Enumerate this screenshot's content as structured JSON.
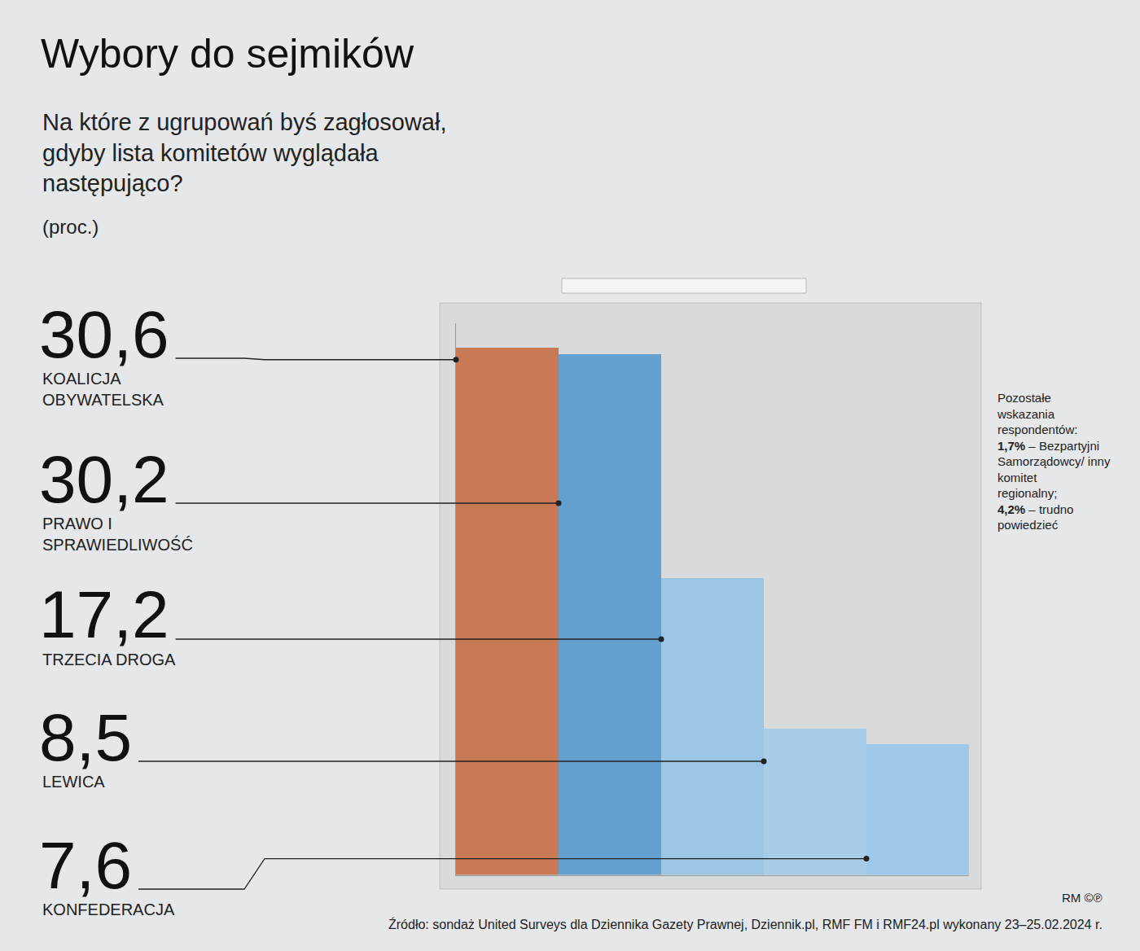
{
  "chart_data": {
    "type": "bar",
    "title": "Wybory do sejmików",
    "subtitle": "Na które z ugrupowań byś zagłosował, gdyby lista komitetów wyglądała następująco?",
    "unit": "(proc.)",
    "categories": [
      "KOALICJA OBYWATELSKA",
      "PRAWO I SPRAWIEDLIWOŚĆ",
      "TRZECIA DROGA",
      "LEWICA",
      "KONFEDERACJA"
    ],
    "values": [
      30.6,
      30.2,
      17.2,
      8.5,
      7.6
    ],
    "value_labels": [
      "30,6",
      "30,2",
      "17,2",
      "8,5",
      "7,6"
    ],
    "colors": [
      "#c97a55",
      "#64a0cf",
      "#9cc6e3",
      "#a7cde8",
      "#9ec9ea"
    ],
    "ylim": [
      0,
      32
    ],
    "tick_labels": false,
    "note": {
      "intro": "Pozostałe wskazania respondentów:",
      "items": [
        {
          "value": "1,7%",
          "text": "– Bezpartyjni Samorządowcy/ inny komitet regionalny;"
        },
        {
          "value": "4,2%",
          "text": "– trudno powiedzieć"
        }
      ]
    },
    "source": "Źródło: sondaż United Surveys dla Dziennika Gazety Prawnej, Dziennik.pl, RMF FM i RMF24.pl wykonany 23–25.02.2024 r.",
    "credit": "RM ©℗"
  }
}
